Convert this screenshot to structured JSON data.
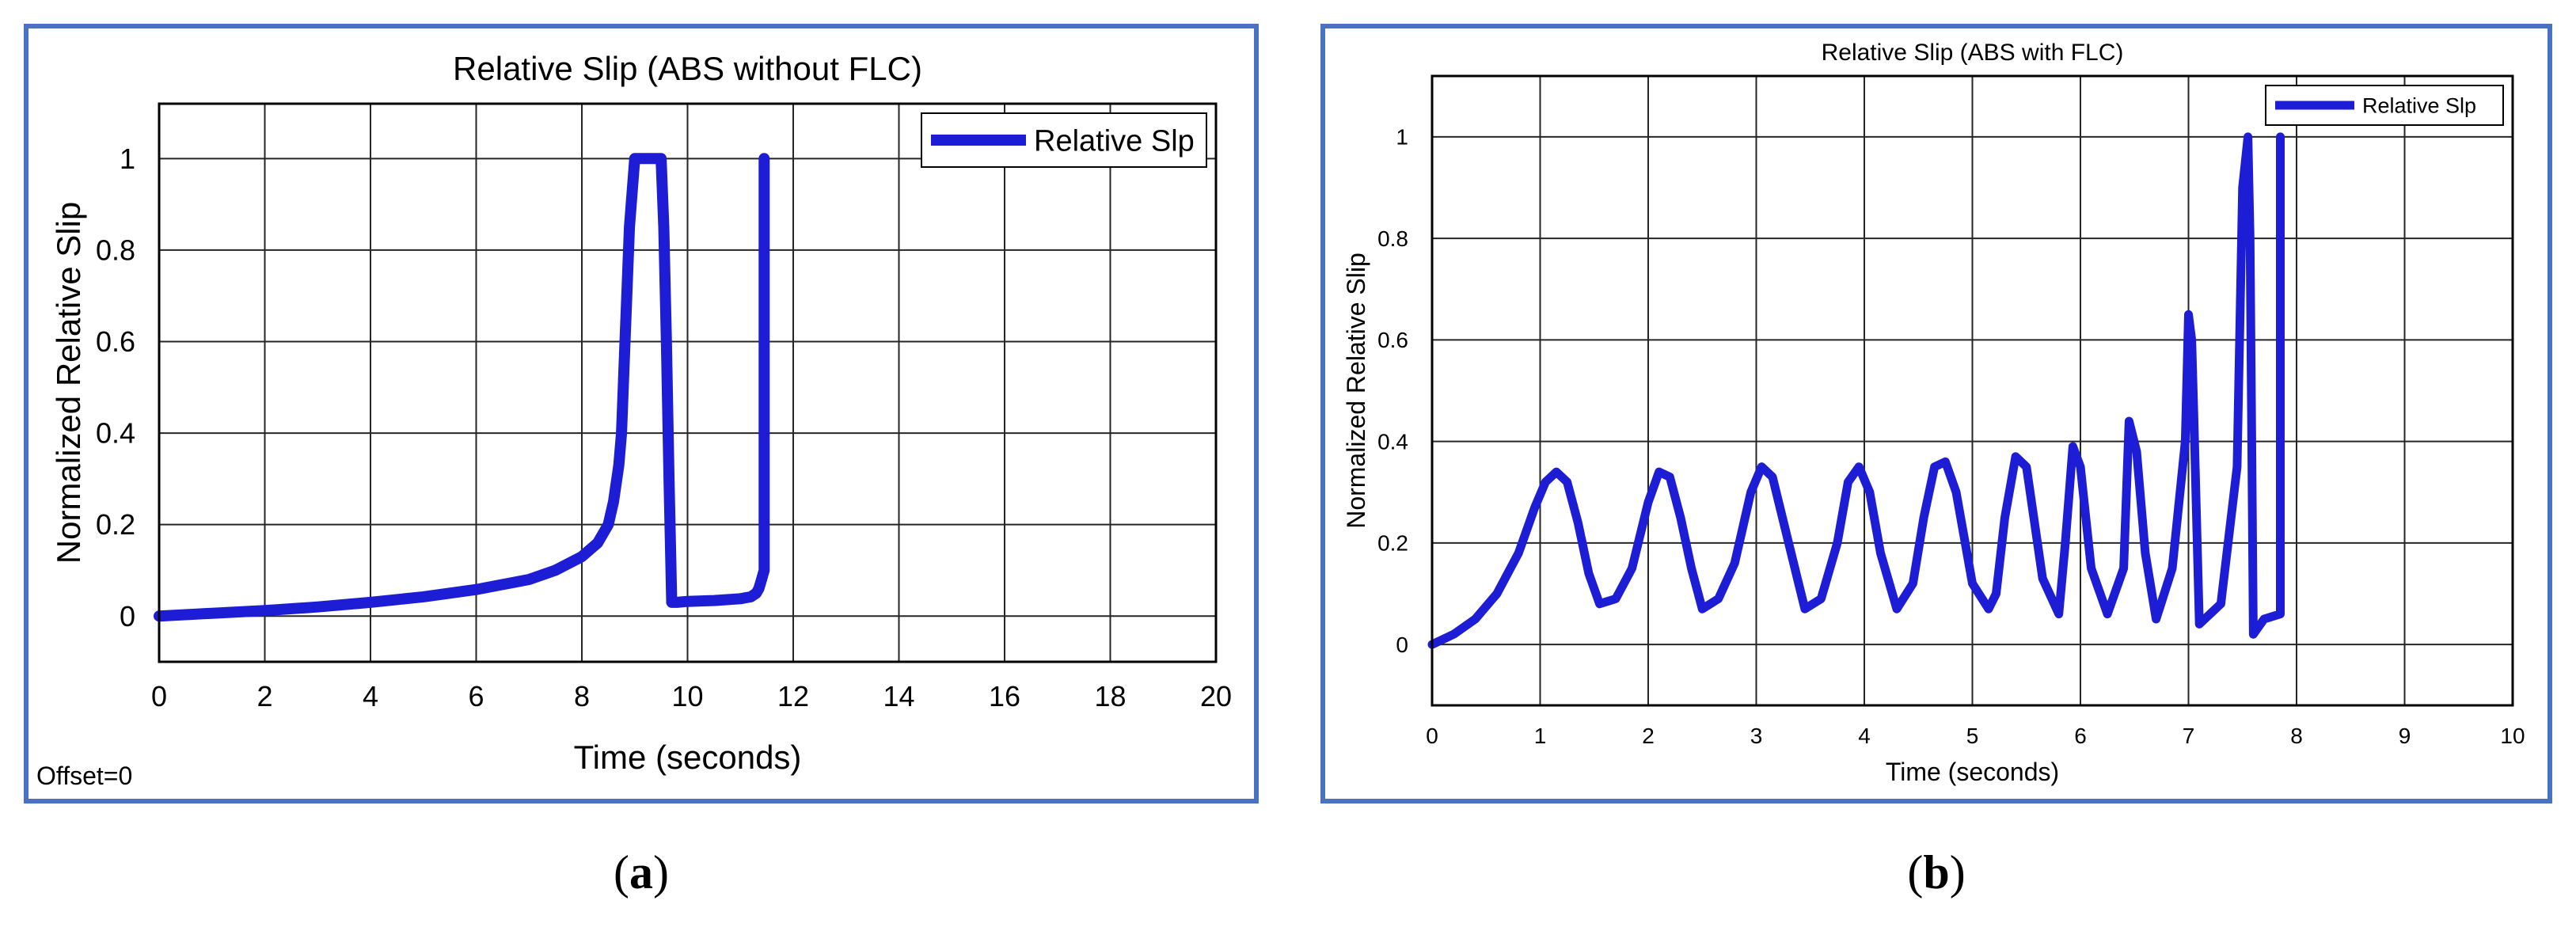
{
  "chart_data": [
    {
      "panel": "a",
      "type": "line",
      "title": "Relative Slip (ABS without FLC)",
      "xlabel": "Time (seconds)",
      "ylabel": "Normalized Relative Slip",
      "xlim": [
        0,
        20
      ],
      "ylim": [
        -0.1,
        1.12
      ],
      "xticks": [
        0,
        2,
        4,
        6,
        8,
        10,
        12,
        14,
        16,
        18,
        20
      ],
      "yticks": [
        0,
        0.2,
        0.4,
        0.6,
        0.8,
        1
      ],
      "grid": true,
      "legend_position": "top-right",
      "annotation": "Offset=0",
      "line_color": "#1d1dd6",
      "series": [
        {
          "name": "Relative Slp",
          "x": [
            0,
            1,
            2,
            3,
            4,
            5,
            6,
            7,
            7.5,
            8,
            8.3,
            8.5,
            8.6,
            8.7,
            8.75,
            8.8,
            8.9,
            9.0,
            9.1,
            9.2,
            9.4,
            9.5,
            9.55,
            9.6,
            9.65,
            9.7,
            9.8,
            10,
            10.5,
            11,
            11.2,
            11.3,
            11.35,
            11.4,
            11.45,
            11.45
          ],
          "y": [
            0,
            0.006,
            0.012,
            0.02,
            0.03,
            0.042,
            0.058,
            0.08,
            0.1,
            0.13,
            0.16,
            0.2,
            0.25,
            0.33,
            0.4,
            0.55,
            0.85,
            1.0,
            1.0,
            1.0,
            1.0,
            1.0,
            0.85,
            0.6,
            0.3,
            0.03,
            0.03,
            0.032,
            0.034,
            0.038,
            0.042,
            0.05,
            0.06,
            0.08,
            0.1,
            1.0
          ]
        }
      ]
    },
    {
      "panel": "b",
      "type": "line",
      "title": "Relative Slip (ABS with FLC)",
      "xlabel": "Time (seconds)",
      "ylabel": "Normalized Relative Slip",
      "xlim": [
        0,
        10
      ],
      "ylim": [
        -0.12,
        1.12
      ],
      "xticks": [
        0,
        1,
        2,
        3,
        4,
        5,
        6,
        7,
        8,
        9,
        10
      ],
      "yticks": [
        0,
        0.2,
        0.4,
        0.6,
        0.8,
        1
      ],
      "grid": true,
      "legend_position": "top-right",
      "line_color": "#1d1dd6",
      "series": [
        {
          "name": "Relative Slp",
          "x": [
            0,
            0.2,
            0.4,
            0.6,
            0.8,
            0.95,
            1.05,
            1.15,
            1.25,
            1.35,
            1.45,
            1.55,
            1.7,
            1.85,
            2.0,
            2.1,
            2.2,
            2.3,
            2.4,
            2.5,
            2.65,
            2.8,
            2.95,
            3.05,
            3.15,
            3.3,
            3.45,
            3.6,
            3.75,
            3.85,
            3.95,
            4.05,
            4.15,
            4.3,
            4.45,
            4.55,
            4.65,
            4.75,
            4.85,
            5.0,
            5.15,
            5.22,
            5.3,
            5.4,
            5.5,
            5.65,
            5.8,
            5.86,
            5.93,
            6.0,
            6.1,
            6.25,
            6.4,
            6.45,
            6.52,
            6.6,
            6.7,
            6.85,
            6.97,
            7.0,
            7.03,
            7.05,
            7.1,
            7.3,
            7.45,
            7.5,
            7.55,
            7.57,
            7.6,
            7.7,
            7.85,
            7.85
          ],
          "y": [
            0,
            0.02,
            0.05,
            0.1,
            0.18,
            0.27,
            0.32,
            0.34,
            0.32,
            0.24,
            0.14,
            0.08,
            0.09,
            0.15,
            0.28,
            0.34,
            0.33,
            0.25,
            0.15,
            0.07,
            0.09,
            0.16,
            0.3,
            0.35,
            0.33,
            0.2,
            0.07,
            0.09,
            0.2,
            0.32,
            0.35,
            0.3,
            0.18,
            0.07,
            0.12,
            0.25,
            0.35,
            0.36,
            0.3,
            0.12,
            0.07,
            0.1,
            0.25,
            0.37,
            0.35,
            0.13,
            0.06,
            0.2,
            0.39,
            0.35,
            0.15,
            0.06,
            0.15,
            0.44,
            0.38,
            0.18,
            0.05,
            0.15,
            0.4,
            0.65,
            0.6,
            0.45,
            0.04,
            0.08,
            0.35,
            0.9,
            1.0,
            0.8,
            0.02,
            0.05,
            0.06,
            1.0
          ]
        }
      ]
    }
  ],
  "captions": {
    "a": "a",
    "b": "b"
  }
}
